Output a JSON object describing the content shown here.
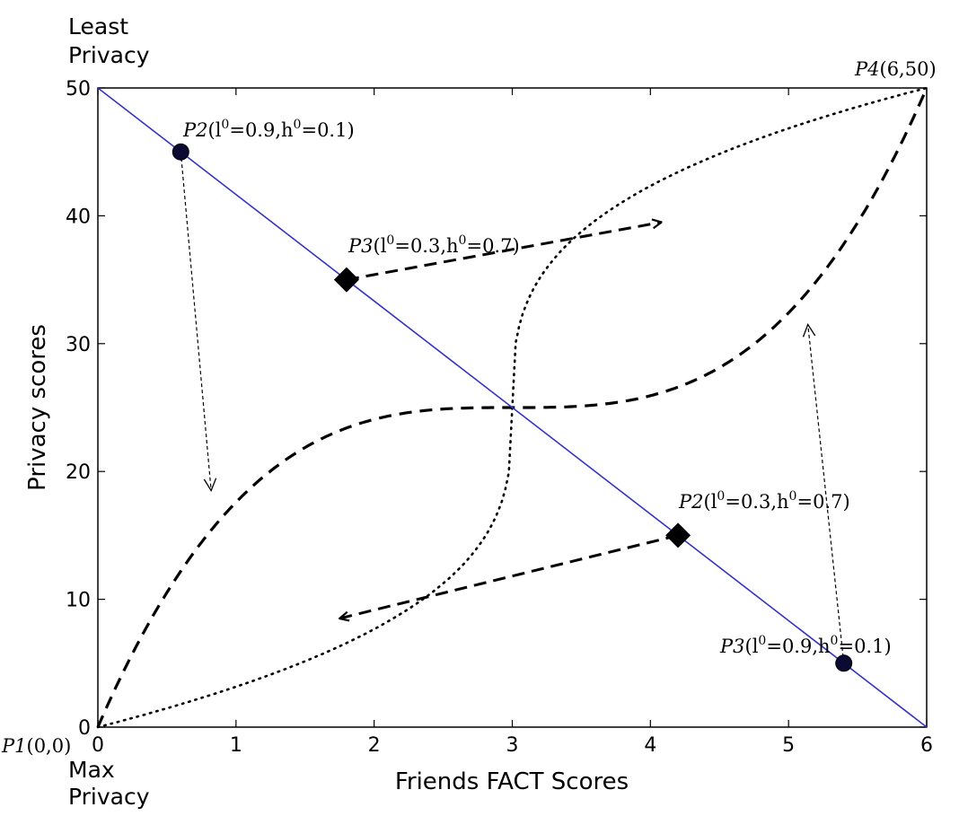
{
  "chart_data": {
    "type": "line",
    "title": "",
    "xlabel": "Friends FACT Scores",
    "ylabel": "Privacy scores",
    "xlim": [
      0,
      6
    ],
    "ylim": [
      0,
      50
    ],
    "xticks": [
      "0",
      "1",
      "2",
      "3",
      "4",
      "5",
      "6"
    ],
    "yticks": [
      "0",
      "10",
      "20",
      "30",
      "40",
      "50"
    ],
    "grid": false,
    "legend": "none",
    "corner_labels": {
      "top_left": [
        "Least",
        "Privacy"
      ],
      "bottom_left": [
        "Max",
        "Privacy"
      ]
    },
    "series": [
      {
        "style": "solid",
        "color": "#3333cc",
        "x": [
          0,
          6
        ],
        "y": [
          50,
          0
        ]
      },
      {
        "style": "dashed",
        "color": "#000000",
        "shape": "s-curve from (0,0) to (6,50) through (3,25)"
      },
      {
        "style": "dotted",
        "color": "#000000",
        "shape": "cubic-root curve from (0,0) to (6,50) through (3,25)"
      }
    ],
    "points": [
      {
        "name": "P1",
        "args": "(0,0)",
        "x": 0,
        "y": 0,
        "marker": "none"
      },
      {
        "name": "P4",
        "args": "(6,50)",
        "x": 6,
        "y": 50,
        "marker": "none"
      },
      {
        "name": "P2",
        "args": "(l0=0.9,h0=0.1)",
        "x": 0.6,
        "y": 45,
        "marker": "circle"
      },
      {
        "name": "P3",
        "args": "(l0=0.3,h0=0.7)",
        "x": 1.8,
        "y": 35,
        "marker": "diamond"
      },
      {
        "name": "P2",
        "args": "(l0=0.3,h0=0.7)",
        "x": 4.2,
        "y": 15,
        "marker": "diamond"
      },
      {
        "name": "P3",
        "args": "(l0=0.9,h0=0.1)",
        "x": 5.4,
        "y": 5,
        "marker": "circle"
      }
    ],
    "arrows": [
      {
        "from": [
          0.6,
          45
        ],
        "to": [
          0.82,
          18.5
        ],
        "style": "thin-dashed"
      },
      {
        "from": [
          1.8,
          35
        ],
        "to": [
          4.08,
          39.5
        ],
        "style": "thick-dashed"
      },
      {
        "from": [
          4.2,
          15
        ],
        "to": [
          1.75,
          8.5
        ],
        "style": "thick-dashed"
      },
      {
        "from": [
          5.4,
          5
        ],
        "to": [
          5.14,
          31.5
        ],
        "style": "thin-dashed"
      }
    ],
    "annotations": {
      "p1": {
        "name": "P1",
        "args": "(0,0)"
      },
      "p4": {
        "name": "P4",
        "args": "(6,50)"
      },
      "p2_high": {
        "name": "P2",
        "l": "(l",
        "sup": "0",
        "mid": "=0.9,h",
        "sup2": "0",
        "end": "=0.1)"
      },
      "p3_high": {
        "name": "P3",
        "l": "(l",
        "sup": "0",
        "mid": "=0.3,h",
        "sup2": "0",
        "end": "=0.7)"
      },
      "p2_low": {
        "name": "P2",
        "l": "(l",
        "sup": "0",
        "mid": "=0.3,h",
        "sup2": "0",
        "end": "=0.7)"
      },
      "p3_low": {
        "name": "P3",
        "l": "(l",
        "sup": "0",
        "mid": "=0.9,h",
        "sup2": "0",
        "end": "=0.1)"
      }
    }
  }
}
